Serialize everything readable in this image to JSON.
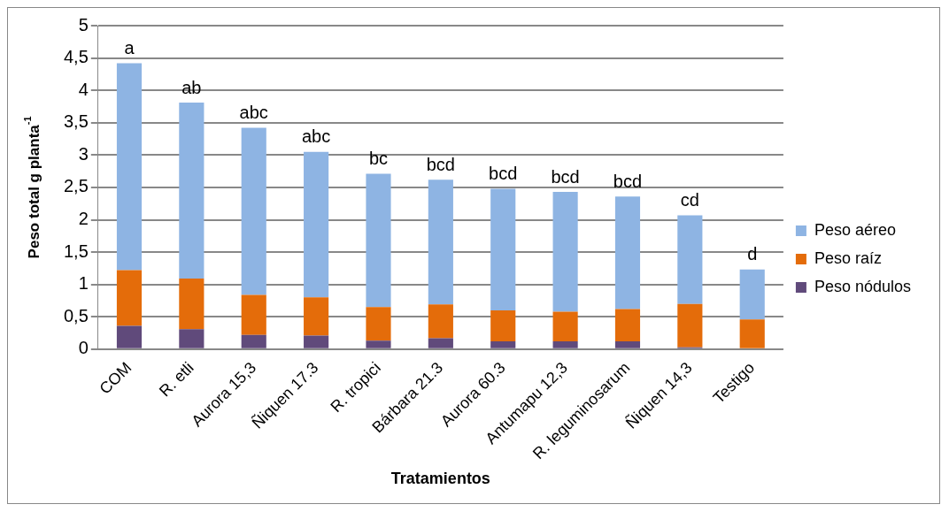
{
  "chart_data": {
    "type": "bar",
    "stacked": true,
    "xlabel": "Tratamientos",
    "ylabel": "Peso total g planta$^{-1}$",
    "categories": [
      "COM",
      "R. etli",
      "Aurora 15,3",
      "Ñiquen 17.3",
      "R. tropici",
      "Bárbara 21.3",
      "Aurora 60.3",
      "Antumapu 12,3",
      "R. leguminosarum",
      "Ñiquen 14,3",
      "Testigo"
    ],
    "series": [
      {
        "name": "Peso nódulos",
        "color": "#604a7b",
        "values": [
          0.36,
          0.31,
          0.22,
          0.21,
          0.13,
          0.17,
          0.12,
          0.12,
          0.12,
          0.03,
          0
        ]
      },
      {
        "name": "Peso raíz",
        "color": "#e46c0a",
        "values": [
          0.86,
          0.78,
          0.62,
          0.59,
          0.52,
          0.52,
          0.48,
          0.46,
          0.5,
          0.67,
          0.46
        ]
      },
      {
        "name": "Peso aéreo",
        "color": "#8eb4e3",
        "values": [
          3.2,
          2.72,
          2.58,
          2.25,
          2.06,
          1.93,
          1.88,
          1.85,
          1.74,
          1.37,
          0.77
        ]
      }
    ],
    "ylim": [
      0,
      5
    ],
    "yticks": [
      0,
      {
        "value": 0.5,
        "label": "0,5"
      },
      1,
      {
        "value": 1.5,
        "label": "1,5"
      },
      2,
      {
        "value": 2.5,
        "label": "2,5"
      },
      3,
      {
        "value": 3.5,
        "label": "3,5"
      },
      4,
      {
        "value": 4.5,
        "label": "4,5"
      },
      5
    ],
    "grid": "y",
    "legend": "right",
    "annotations": [
      {
        "text": "a",
        "x": "COM",
        "y": 4.42
      },
      {
        "text": "ab",
        "x": "R. etli",
        "y": 3.81
      },
      {
        "text": "abc",
        "x": "Aurora 15,3",
        "y": 3.42
      },
      {
        "text": "abc",
        "x": "Ñiquen 17.3",
        "y": 3.05
      },
      {
        "text": "bc",
        "x": "R. tropici",
        "y": 2.71
      },
      {
        "text": "bcd",
        "x": "Bárbara 21.3",
        "y": 2.62
      },
      {
        "text": "bcd",
        "x": "Aurora 60.3",
        "y": 2.48
      },
      {
        "text": "bcd",
        "x": "Antumapu 12,3",
        "y": 2.43
      },
      {
        "text": "bcd",
        "x": "R. leguminosarum",
        "y": 2.36
      },
      {
        "text": "cd",
        "x": "Ñiquen 14,3",
        "y": 2.07
      },
      {
        "text": "d",
        "x": "Testigo",
        "y": 1.23
      }
    ]
  }
}
